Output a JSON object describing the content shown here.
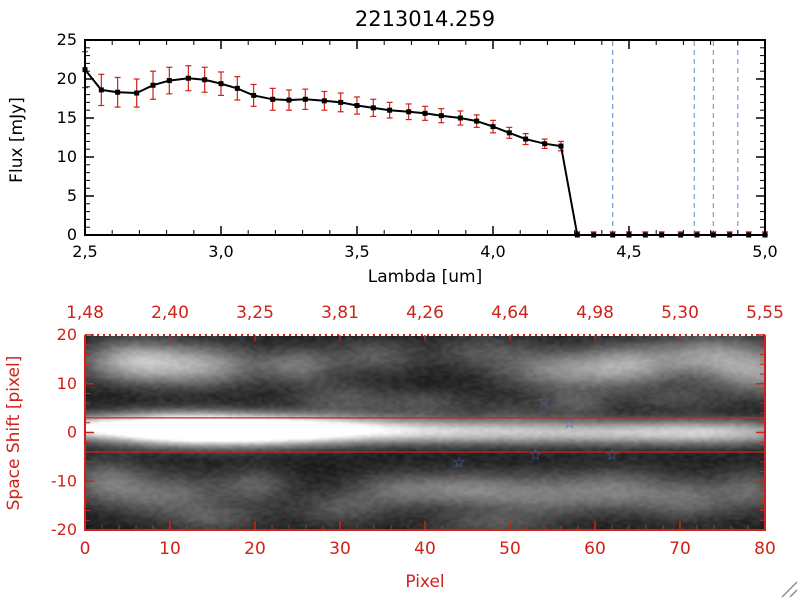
{
  "colors": {
    "background": "#ffffff",
    "axis_black": "#000000",
    "axis_red": "#cf221a",
    "error_red": "#cf221a",
    "series_black": "#000000",
    "vline_blue": "#74a0d4",
    "star_blue": "#3a6bc8"
  },
  "chart_data": [
    {
      "type": "line",
      "title": "2213014.259",
      "xlabel": "Lambda [um]",
      "ylabel": "Flux [mJy]",
      "xlim": [
        2.5,
        5.0
      ],
      "ylim": [
        0,
        25
      ],
      "x_tick_values": [
        2.5,
        3.0,
        3.5,
        4.0,
        4.5,
        5.0
      ],
      "x_tick_labels": [
        "2,5",
        "3,0",
        "3,5",
        "4,0",
        "4,5",
        "5,0"
      ],
      "y_tick_values": [
        0,
        5,
        10,
        15,
        20,
        25
      ],
      "y_tick_labels": [
        "0",
        "5",
        "10",
        "15",
        "20",
        "25"
      ],
      "grid": false,
      "legend": "none",
      "marker": "filled-square",
      "vlines": [
        4.44,
        4.74,
        4.81,
        4.9
      ],
      "series": [
        {
          "name": "flux-spectrum",
          "x": [
            2.5,
            2.56,
            2.62,
            2.69,
            2.75,
            2.81,
            2.88,
            2.94,
            3.0,
            3.06,
            3.12,
            3.19,
            3.25,
            3.31,
            3.38,
            3.44,
            3.5,
            3.56,
            3.62,
            3.69,
            3.75,
            3.81,
            3.88,
            3.94,
            4.0,
            4.06,
            4.12,
            4.19,
            4.25,
            4.31,
            4.37,
            4.44,
            4.5,
            4.56,
            4.62,
            4.69,
            4.75,
            4.81,
            4.87,
            4.94,
            5.0
          ],
          "y": [
            21.2,
            18.6,
            18.3,
            18.2,
            19.2,
            19.8,
            20.1,
            19.9,
            19.4,
            18.8,
            17.9,
            17.4,
            17.3,
            17.4,
            17.2,
            17.0,
            16.6,
            16.3,
            16.0,
            15.8,
            15.6,
            15.3,
            15.0,
            14.6,
            13.9,
            13.1,
            12.3,
            11.7,
            11.4,
            0,
            0,
            0,
            0,
            0,
            0,
            0,
            0,
            0,
            0,
            0,
            0
          ],
          "yerr": [
            2.3,
            2.0,
            1.9,
            1.8,
            1.8,
            1.7,
            1.6,
            1.6,
            1.5,
            1.5,
            1.4,
            1.4,
            1.3,
            1.3,
            1.2,
            1.2,
            1.1,
            1.1,
            1.0,
            1.0,
            0.9,
            0.9,
            0.9,
            0.8,
            0.8,
            0.7,
            0.7,
            0.6,
            0.6,
            0.4,
            0.4,
            0.4,
            0.4,
            0.4,
            0.4,
            0.4,
            0.4,
            0.4,
            0.4,
            0.4,
            0.4
          ]
        }
      ]
    },
    {
      "type": "heatmap",
      "xlabel": "Pixel",
      "ylabel": "Space Shift [pixel]",
      "xlim": [
        0,
        80
      ],
      "ylim": [
        -20,
        20
      ],
      "x_tick_values": [
        0,
        10,
        20,
        30,
        40,
        50,
        60,
        70,
        80
      ],
      "x_tick_labels": [
        "0",
        "10",
        "20",
        "30",
        "40",
        "50",
        "60",
        "70",
        "80"
      ],
      "y_tick_values": [
        -20,
        -10,
        0,
        10,
        20
      ],
      "y_tick_labels": [
        "-20",
        "-10",
        "0",
        "10",
        "20"
      ],
      "top_axis_labels": [
        "1,48",
        "2,40",
        "3,25",
        "3,81",
        "4,26",
        "4,64",
        "4,98",
        "5,30",
        "5,55"
      ],
      "aperture_lines": [
        3,
        -4
      ],
      "stars": [
        {
          "x": 54,
          "y": 6.5
        },
        {
          "x": 57,
          "y": 2
        },
        {
          "x": 44,
          "y": -6
        },
        {
          "x": 53,
          "y": -4.5
        },
        {
          "x": 62,
          "y": -4.5
        }
      ],
      "blobs": [
        [
          0,
          1,
          3,
          1.6,
          0.5
        ],
        [
          8,
          1,
          6,
          2.0,
          0.85
        ],
        [
          15,
          0.5,
          7,
          2.2,
          1.0
        ],
        [
          24,
          0.5,
          7,
          2.0,
          0.75
        ],
        [
          34,
          0.5,
          8,
          1.8,
          0.5
        ],
        [
          45,
          0,
          8,
          1.8,
          0.38
        ],
        [
          56,
          0,
          8,
          1.8,
          0.33
        ],
        [
          67,
          0,
          8,
          1.8,
          0.4
        ],
        [
          77,
          0,
          7,
          1.8,
          0.45
        ],
        [
          5,
          15,
          4,
          3,
          0.5
        ],
        [
          13,
          14,
          5,
          3,
          0.5
        ],
        [
          25,
          14,
          3,
          2.5,
          0.3
        ],
        [
          34,
          16,
          4,
          2.5,
          0.22
        ],
        [
          47,
          17,
          4,
          2.5,
          0.18
        ],
        [
          56,
          13,
          5,
          3,
          0.38
        ],
        [
          64,
          14,
          4,
          3,
          0.42
        ],
        [
          74,
          16,
          5,
          3,
          0.45
        ],
        [
          80,
          12,
          4,
          3,
          0.4
        ],
        [
          30,
          7,
          4,
          2.5,
          0.2
        ],
        [
          40,
          6,
          4,
          2,
          0.18
        ],
        [
          58,
          6,
          3,
          2,
          0.2
        ],
        [
          50,
          4,
          3,
          2,
          0.12
        ],
        [
          70,
          7,
          4,
          2,
          0.15
        ],
        [
          2,
          -10,
          3,
          3,
          0.28
        ],
        [
          9,
          -13,
          5,
          3,
          0.3
        ],
        [
          20,
          -11,
          3,
          2.5,
          0.22
        ],
        [
          30,
          -16,
          4,
          2.5,
          0.2
        ],
        [
          37,
          -12,
          4,
          2.5,
          0.28
        ],
        [
          45,
          -12,
          4,
          2.5,
          0.3
        ],
        [
          54,
          -13,
          5,
          3,
          0.33
        ],
        [
          63,
          -12,
          4,
          3,
          0.28
        ],
        [
          71,
          -14,
          4,
          3,
          0.28
        ],
        [
          79,
          -12,
          3,
          3,
          0.25
        ],
        [
          15,
          -18,
          4,
          2,
          0.2
        ],
        [
          48,
          -19,
          5,
          2,
          0.18
        ]
      ]
    }
  ]
}
